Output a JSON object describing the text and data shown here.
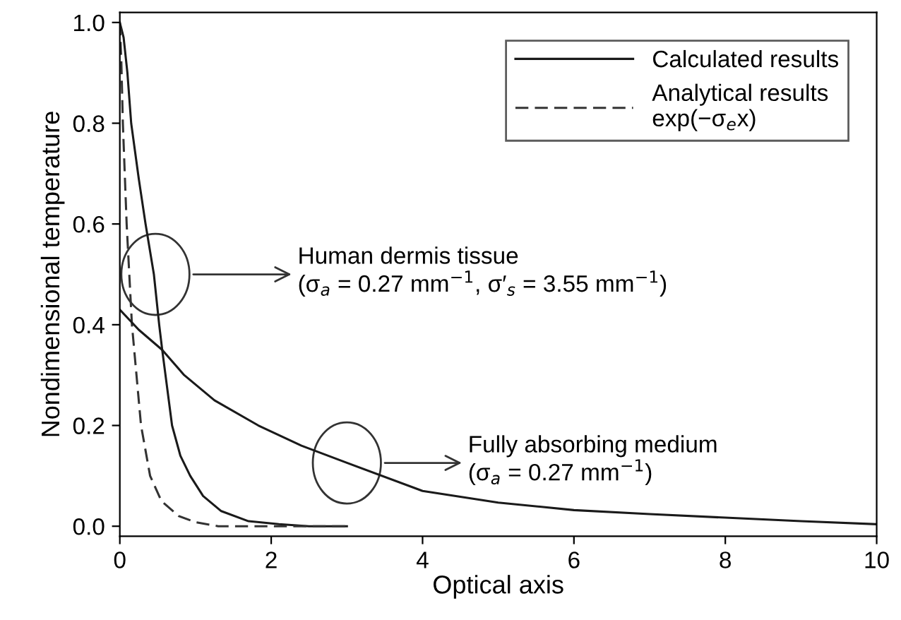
{
  "chart_data": {
    "type": "line",
    "xlabel": "Optical axis",
    "ylabel": "Nondimensional temperature",
    "xlim": [
      0,
      10
    ],
    "ylim": [
      -0.02,
      1.02
    ],
    "xticks": [
      0,
      2,
      4,
      6,
      8,
      10
    ],
    "yticks": [
      {
        "value": 0,
        "label": "0.0"
      },
      {
        "value": 0.2,
        "label": "0.2"
      },
      {
        "value": 0.4,
        "label": "0.4"
      },
      {
        "value": 0.6,
        "label": "0.6"
      },
      {
        "value": 0.8,
        "label": "0.8"
      },
      {
        "value": 1.0,
        "label": "1.0"
      }
    ],
    "grid": false,
    "legend": "top right",
    "marker": "none",
    "series": [
      {
        "name": "Calculated results",
        "color": "#1a1a1a",
        "line_style": "solid",
        "x": [
          0,
          0.05,
          0.1,
          0.15,
          0.25,
          0.34,
          0.45,
          0.52,
          0.56,
          0.69,
          0.8,
          0.93,
          1.1,
          1.34,
          1.7,
          2.1,
          2.5,
          3
        ],
        "values": [
          1.0,
          0.97,
          0.9,
          0.8,
          0.69,
          0.6,
          0.5,
          0.4,
          0.35,
          0.2,
          0.14,
          0.1,
          0.06,
          0.03,
          0.01,
          0.004,
          0.0,
          0.0
        ]
      },
      {
        "name": "Analytical results\nexp(−σ$_{e}$x)",
        "color": "#333333",
        "line_style": "dashed",
        "x": [
          0,
          0.02,
          0.04,
          0.09,
          0.16,
          0.28,
          0.4,
          0.55,
          0.78,
          1.0,
          1.3,
          2.0,
          3.0
        ],
        "values": [
          1.0,
          0.92,
          0.8,
          0.6,
          0.4,
          0.2,
          0.1,
          0.05,
          0.02,
          0.008,
          0.0,
          0.0,
          0.0
        ]
      },
      {
        "color": "#1a1a1a",
        "line_style": "solid",
        "x": [
          0,
          0.25,
          0.56,
          0.85,
          1.25,
          1.83,
          2.4,
          3.0,
          4.0,
          5.0,
          6.0,
          7.0,
          8.0,
          9.0,
          10.0
        ],
        "values": [
          0.43,
          0.39,
          0.35,
          0.3,
          0.25,
          0.2,
          0.16,
          0.126,
          0.07,
          0.047,
          0.032,
          0.024,
          0.017,
          0.01,
          0.004
        ]
      }
    ],
    "annotations": [
      "Human dermis tissue\n(σ$_{a}$ = 0.27 mm$^{−1}$, σ′$_{s}$ = 3.55 mm$^{−1}$)",
      "Fully absorbing medium\n(σ$_{a}$ = 0.27 mm$^{−1}$)"
    ]
  }
}
